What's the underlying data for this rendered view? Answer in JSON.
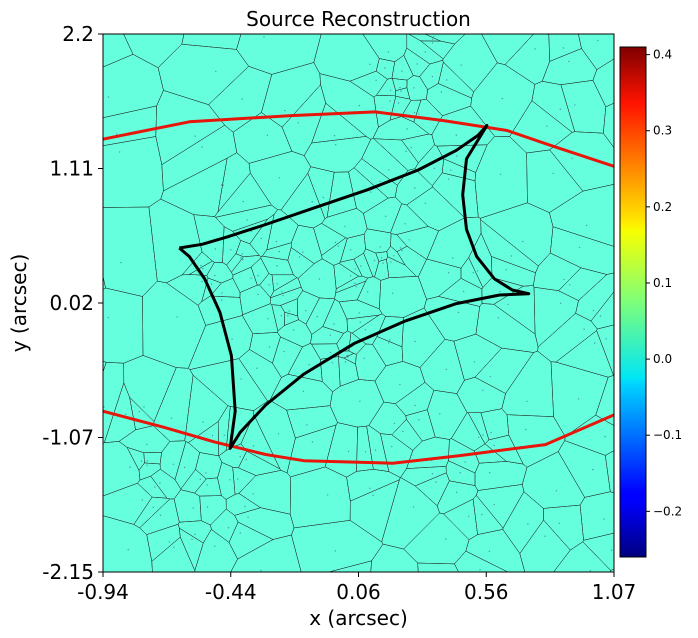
{
  "chart_data": {
    "type": "heatmap",
    "title": "Source Reconstruction",
    "xlabel": "x (arcsec)",
    "ylabel": "y (arcsec)",
    "xlim": [
      -0.94,
      1.07
    ],
    "ylim": [
      -2.15,
      2.2
    ],
    "xticks": [
      "-0.94",
      "-0.44",
      "0.06",
      "0.56",
      "1.07"
    ],
    "yticks": [
      "2.2",
      "1.11",
      "0.02",
      "-1.07",
      "-2.15"
    ],
    "colorbar": {
      "min": -0.26,
      "max": 0.41,
      "ticks": [
        "0.4",
        "0.3",
        "0.2",
        "0.1",
        "0.0",
        "−0.1",
        "−0.2"
      ],
      "tick_values": [
        0.4,
        0.3,
        0.2,
        0.1,
        0.0,
        -0.1,
        -0.2
      ],
      "colormap": "jet"
    },
    "background_value": 0.02,
    "colors": {
      "background": "#66ffde",
      "caustic": "#000000",
      "critical_curve": "#e8150b",
      "mesh": "#1a1a1a"
    },
    "caustic": [
      [
        -0.64,
        0.47
      ],
      [
        -0.55,
        0.5
      ],
      [
        -0.45,
        0.56
      ],
      [
        -0.3,
        0.66
      ],
      [
        -0.1,
        0.8
      ],
      [
        0.1,
        0.94
      ],
      [
        0.3,
        1.1
      ],
      [
        0.45,
        1.26
      ],
      [
        0.535,
        1.38
      ],
      [
        0.57,
        1.46
      ],
      [
        0.49,
        1.19
      ],
      [
        0.475,
        0.9
      ],
      [
        0.49,
        0.62
      ],
      [
        0.53,
        0.4
      ],
      [
        0.6,
        0.22
      ],
      [
        0.67,
        0.13
      ],
      [
        0.735,
        0.1
      ],
      [
        0.62,
        0.09
      ],
      [
        0.45,
        0.02
      ],
      [
        0.25,
        -0.12
      ],
      [
        0.05,
        -0.3
      ],
      [
        -0.15,
        -0.55
      ],
      [
        -0.3,
        -0.8
      ],
      [
        -0.4,
        -1.02
      ],
      [
        -0.44,
        -1.15
      ],
      [
        -0.42,
        -0.85
      ],
      [
        -0.435,
        -0.4
      ],
      [
        -0.48,
        -0.05
      ],
      [
        -0.54,
        0.22
      ],
      [
        -0.6,
        0.4
      ],
      [
        -0.64,
        0.47
      ]
    ],
    "critical_curves": [
      [
        [
          -0.94,
          1.35
        ],
        [
          -0.6,
          1.49
        ],
        [
          -0.2,
          1.54
        ],
        [
          0.13,
          1.57
        ],
        [
          0.4,
          1.5
        ],
        [
          0.65,
          1.42
        ],
        [
          0.82,
          1.3
        ],
        [
          1.07,
          1.13
        ]
      ],
      [
        [
          -0.94,
          -0.85
        ],
        [
          -0.7,
          -0.98
        ],
        [
          -0.5,
          -1.1
        ],
        [
          -0.3,
          -1.2
        ],
        [
          -0.15,
          -1.25
        ],
        [
          0.2,
          -1.27
        ],
        [
          0.46,
          -1.21
        ],
        [
          0.8,
          -1.12
        ],
        [
          1.07,
          -0.88
        ]
      ]
    ]
  }
}
